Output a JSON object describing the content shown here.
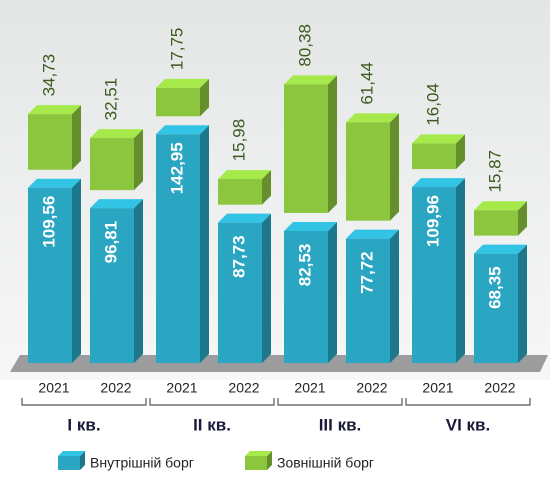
{
  "chart_data": {
    "type": "bar",
    "stacked": true,
    "categories": [
      "2021",
      "2022",
      "2021",
      "2022",
      "2021",
      "2022",
      "2021",
      "2022"
    ],
    "groups": [
      "I кв.",
      "II кв.",
      "III кв.",
      "VI кв."
    ],
    "series": [
      {
        "name": "Внутрішній борг",
        "color": "#2aa6c2",
        "values": [
          109.56,
          96.81,
          142.95,
          87.73,
          82.53,
          77.72,
          109.96,
          68.35
        ],
        "value_labels": [
          "109,56",
          "96,81",
          "142,95",
          "87,73",
          "82,53",
          "77,72",
          "109,96",
          "68,35"
        ]
      },
      {
        "name": "Зовнішній борг",
        "color": "#8cc63f",
        "values": [
          34.73,
          32.51,
          17.75,
          15.98,
          80.38,
          61.44,
          16.04,
          15.87
        ],
        "value_labels": [
          "34,73",
          "32,51",
          "17,75",
          "15,98",
          "80,38",
          "61,44",
          "16,04",
          "15,87"
        ]
      }
    ]
  }
}
